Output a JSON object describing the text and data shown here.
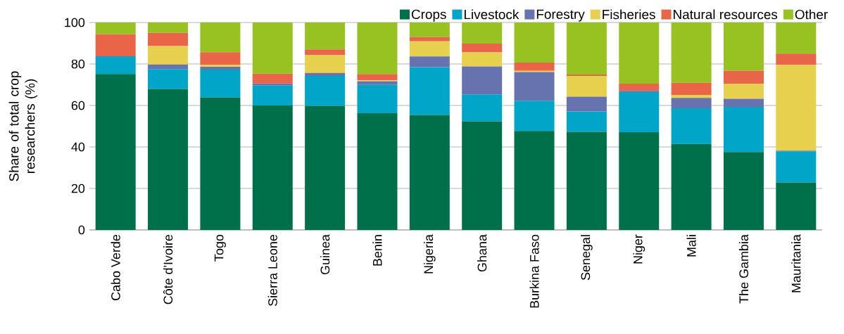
{
  "chart_data": {
    "type": "bar",
    "stacked": true,
    "ylabel": "Share of total crop researchers (%)",
    "categories": [
      "Cabo Verde",
      "Côte d'Ivoire",
      "Togo",
      "Sierra Leone",
      "Guinea",
      "Benin",
      "Nigeria",
      "Ghana",
      "Burkina Faso",
      "Senegal",
      "Niger",
      "Mali",
      "The Gambia",
      "Mauritania"
    ],
    "series": [
      {
        "name": "Crops",
        "color": "#00704a",
        "values": [
          75.2,
          67.9,
          63.9,
          60.0,
          59.8,
          56.3,
          55.4,
          52.4,
          47.7,
          47.3,
          47.1,
          41.4,
          37.5,
          22.9
        ]
      },
      {
        "name": "Livestock",
        "color": "#00a5c8",
        "values": [
          8.5,
          9.6,
          13.4,
          9.6,
          14.4,
          13.6,
          23.1,
          12.9,
          14.6,
          9.8,
          19.3,
          17.2,
          21.8,
          15.0
        ]
      },
      {
        "name": "Forestry",
        "color": "#6673ae",
        "values": [
          0,
          2.2,
          1.3,
          1.0,
          1.5,
          1.8,
          5.1,
          13.5,
          13.8,
          7.1,
          0.6,
          5.0,
          3.9,
          0.3
        ]
      },
      {
        "name": "Fisheries",
        "color": "#e8d04f",
        "values": [
          0,
          8.9,
          1.0,
          0,
          8.5,
          0.4,
          7.3,
          6.8,
          0.6,
          10.0,
          0,
          1.5,
          7.2,
          41.4
        ]
      },
      {
        "name": "Natural resources",
        "color": "#e86548",
        "values": [
          10.6,
          6.4,
          6.1,
          4.7,
          2.8,
          3.1,
          2.1,
          4.2,
          4.0,
          0.7,
          3.5,
          5.8,
          6.4,
          5.4
        ]
      },
      {
        "name": "Other",
        "color": "#98c221",
        "values": [
          5.7,
          5.0,
          14.3,
          24.7,
          13.0,
          24.8,
          7.0,
          10.2,
          19.3,
          25.1,
          29.5,
          29.1,
          23.2,
          15.0
        ]
      }
    ],
    "ylim": [
      0,
      100
    ],
    "yticks": [
      0,
      20,
      40,
      60,
      80,
      100
    ],
    "grid": "y",
    "legend": "top right"
  }
}
